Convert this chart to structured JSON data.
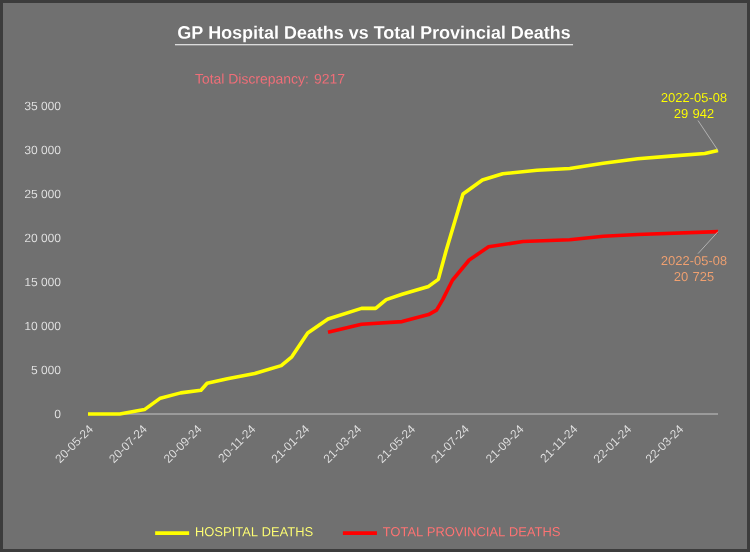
{
  "chart_data": {
    "type": "line",
    "title": "GP Hospital Deaths vs Total Provincial Deaths",
    "xlim": [
      "2020-05-24",
      "2022-05-08"
    ],
    "xticks": [
      {
        "value": "2020-05-24",
        "label": "20-05-24"
      },
      {
        "value": "2020-07-24",
        "label": "20-07-24"
      },
      {
        "value": "2020-09-24",
        "label": "20-09-24"
      },
      {
        "value": "2020-11-24",
        "label": "20-11-24"
      },
      {
        "value": "2021-01-24",
        "label": "21-01-24"
      },
      {
        "value": "2021-03-24",
        "label": "21-03-24"
      },
      {
        "value": "2021-05-24",
        "label": "21-05-24"
      },
      {
        "value": "2021-07-24",
        "label": "21-07-24"
      },
      {
        "value": "2021-09-24",
        "label": "21-09-24"
      },
      {
        "value": "2021-11-24",
        "label": "21-11-24"
      },
      {
        "value": "2022-01-24",
        "label": "22-01-24"
      },
      {
        "value": "2022-03-24",
        "label": "22-03-24"
      }
    ],
    "ylim": [
      0,
      35000
    ],
    "yticks": [
      {
        "value": 0,
        "label": "0"
      },
      {
        "value": 5000,
        "label": "5 000"
      },
      {
        "value": 10000,
        "label": "10 000"
      },
      {
        "value": 15000,
        "label": "15 000"
      },
      {
        "value": 20000,
        "label": "20 000"
      },
      {
        "value": 25000,
        "label": "25 000"
      },
      {
        "value": 30000,
        "label": "30 000"
      },
      {
        "value": 35000,
        "label": "35 000"
      }
    ],
    "grid": false,
    "legend": "bottom",
    "marker": "none",
    "line_style": "solid",
    "series": [
      {
        "name": "HOSPITAL DEATHS",
        "color": "#ffff00",
        "x": [
          "2020-05-24",
          "2020-06-29",
          "2020-07-27",
          "2020-08-14",
          "2020-09-06",
          "2020-09-29",
          "2020-10-06",
          "2020-10-29",
          "2020-11-29",
          "2020-12-29",
          "2021-01-10",
          "2021-01-28",
          "2021-02-20",
          "2021-03-30",
          "2021-04-15",
          "2021-04-27",
          "2021-05-15",
          "2021-06-14",
          "2021-06-25",
          "2021-07-04",
          "2021-07-23",
          "2021-08-14",
          "2021-09-06",
          "2021-10-15",
          "2021-11-21",
          "2021-12-29",
          "2022-02-06",
          "2022-03-15",
          "2022-04-23",
          "2022-05-08"
        ],
        "values": [
          0,
          0,
          500,
          1800,
          2400,
          2700,
          3500,
          4000,
          4600,
          5500,
          6500,
          9200,
          10800,
          12000,
          12000,
          13000,
          13600,
          14500,
          15300,
          18600,
          25000,
          26600,
          27300,
          27700,
          27900,
          28500,
          29000,
          29300,
          29600,
          29942
        ]
      },
      {
        "name": "TOTAL PROVINCIAL DEATHS",
        "color": "#ff0000",
        "x": [
          "2021-02-20",
          "2021-03-30",
          "2021-05-15",
          "2021-06-14",
          "2021-06-23",
          "2021-06-30",
          "2021-07-11",
          "2021-07-30",
          "2021-08-21",
          "2021-09-29",
          "2021-11-21",
          "2021-12-29",
          "2022-02-06",
          "2022-05-08"
        ],
        "values": [
          9300,
          10200,
          10500,
          11300,
          11800,
          13000,
          15200,
          17500,
          19000,
          19600,
          19800,
          20200,
          20400,
          20725
        ]
      }
    ],
    "annotations": [
      "Total Discrepancy:  9217",
      {
        "text": "2022-05-08 29 942",
        "x": "2022-05-08",
        "y": 29942
      },
      {
        "text": "2022-05-08 20 725",
        "x": "2022-05-08",
        "y": 20725
      }
    ]
  }
}
